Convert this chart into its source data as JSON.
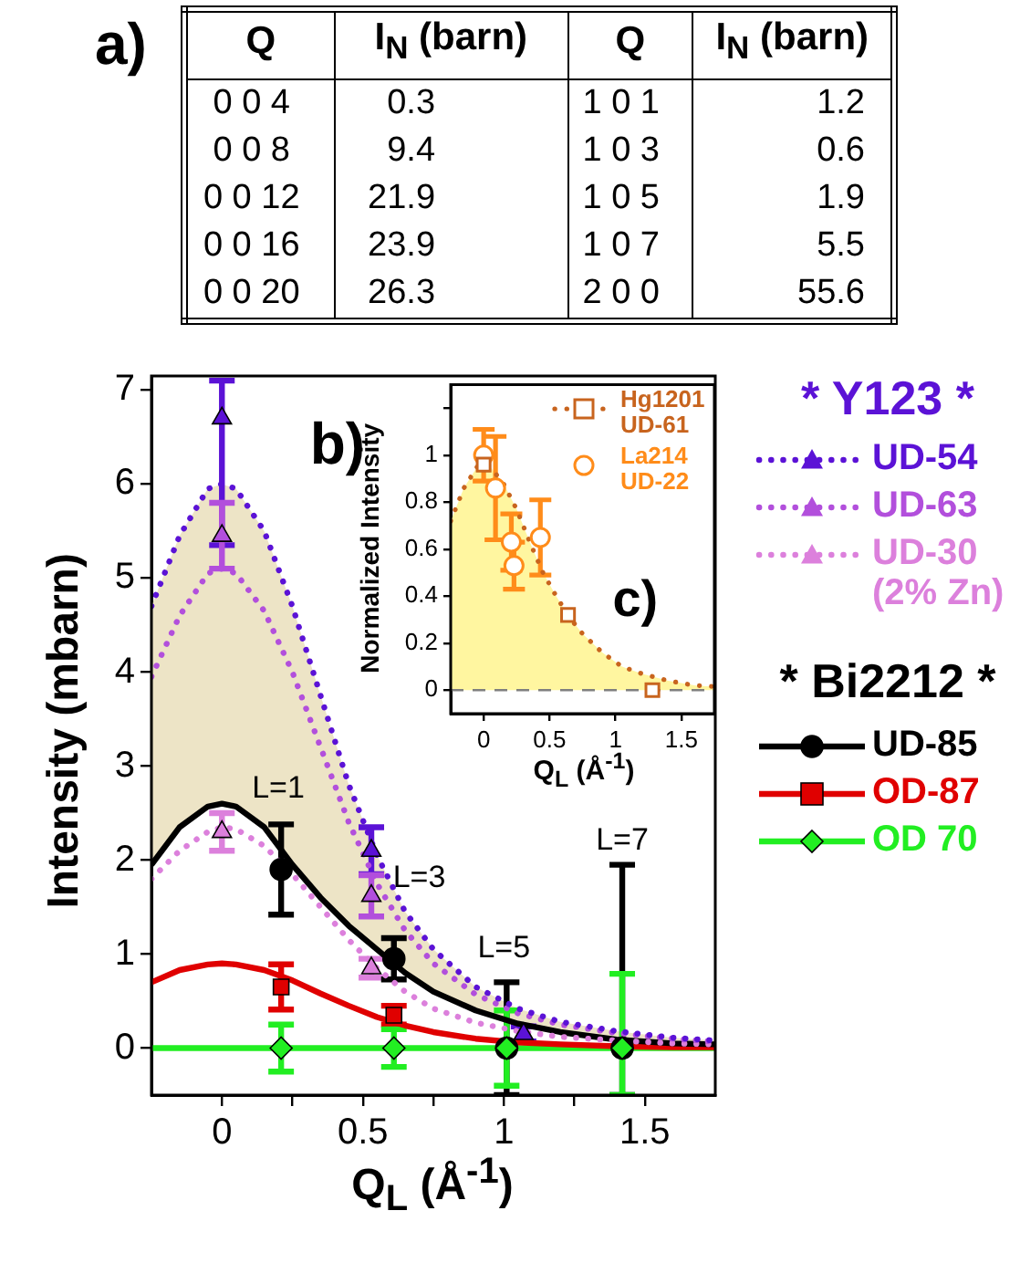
{
  "chart_data": [
    {
      "type": "other",
      "title": "a)",
      "xlabel": "Q",
      "ylabel": "I$_{N}$ (barn)",
      "categories": [
        "0 0 4",
        "0 0 8",
        "0 0 12",
        "0 0 16",
        "0 0 20",
        "1 0 1",
        "1 0 3",
        "1 0 5",
        "1 0 7",
        "2 0 0"
      ],
      "values": [
        0.3,
        9.4,
        21.9,
        23.9,
        26.3,
        1.2,
        0.6,
        1.9,
        5.5,
        55.6
      ],
      "data_labels": true
    },
    {
      "type": "line",
      "title": "b)",
      "xlabel": "Q$_{L}$ (Å$^{-1}$)",
      "ylabel": "Intensity (mbarn)",
      "xlim": [
        -0.25,
        1.75
      ],
      "xticks": [
        0,
        {
          "value": 0.25,
          "label": null
        },
        0.5,
        {
          "value": 0.75,
          "label": null
        },
        1,
        {
          "value": 1.25,
          "label": null
        },
        1.5
      ],
      "ylim": [
        -0.5,
        7.15
      ],
      "yticks": [
        0,
        1,
        2,
        3,
        4,
        5,
        6,
        7
      ],
      "legend": "right",
      "annotations": [
        "* Y123 *",
        "* Bi2212 *",
        "L=1",
        "L=3",
        "L=5",
        "L=7"
      ],
      "series": [
        {
          "type": "scatter",
          "name": "UD-54",
          "color": "#5b12d6",
          "marker": "triangle",
          "x": [
            0,
            0.53,
            1.07
          ],
          "values": [
            6.7,
            2.1,
            0.15
          ],
          "errors": [
            [
              5.35,
              7.1
            ],
            0.25,
            0.08
          ]
        },
        {
          "type": "line",
          "color": "#5b12d6",
          "line_style": "dotted",
          "x": [
            -0.25,
            -0.15,
            -0.05,
            0,
            0.05,
            0.15,
            0.25,
            0.35,
            0.45,
            0.55,
            0.65,
            0.75,
            0.9,
            1.05,
            1.2,
            1.4,
            1.6,
            1.75
          ],
          "values": [
            4.7,
            5.45,
            5.95,
            6.0,
            5.95,
            5.5,
            4.7,
            3.75,
            2.8,
            2.05,
            1.45,
            1.05,
            0.65,
            0.42,
            0.28,
            0.18,
            0.11,
            0.08
          ],
          "lower": [
            1.95,
            2.35,
            2.57,
            2.6,
            2.57,
            2.35,
            1.95,
            1.6,
            1.3,
            1.05,
            0.8,
            0.6,
            0.4,
            0.26,
            0.17,
            0.09,
            0.05,
            0.04
          ],
          "upper": [
            4.7,
            5.45,
            5.95,
            6.0,
            5.95,
            5.5,
            4.7,
            3.75,
            2.8,
            2.05,
            1.45,
            1.05,
            0.65,
            0.42,
            0.28,
            0.18,
            0.11,
            0.08
          ]
        },
        {
          "type": "scatter",
          "name": "UD-63",
          "color": "#b24fdc",
          "marker": "triangle",
          "x": [
            0,
            0.53
          ],
          "values": [
            5.45,
            1.62
          ],
          "errors": [
            0.35,
            0.22
          ]
        },
        {
          "type": "line",
          "color": "#b24fdc",
          "line_style": "dotted",
          "x": [
            -0.25,
            -0.15,
            -0.05,
            0,
            0.05,
            0.15,
            0.25,
            0.35,
            0.45,
            0.55,
            0.65,
            0.75,
            0.9,
            1.05,
            1.2,
            1.4,
            1.6,
            1.75
          ],
          "values": [
            3.95,
            4.6,
            5.05,
            5.1,
            5.05,
            4.65,
            4.0,
            3.2,
            2.4,
            1.75,
            1.25,
            0.9,
            0.57,
            0.37,
            0.25,
            0.16,
            0.1,
            0.07
          ]
        },
        {
          "type": "scatter",
          "name": "UD-30 (2% Zn)",
          "color": "#dc80dc",
          "marker": "triangle",
          "x": [
            0,
            0.53
          ],
          "values": [
            2.3,
            0.85
          ],
          "errors": [
            0.2,
            0.1
          ]
        },
        {
          "type": "line",
          "color": "#dc80dc",
          "line_style": "dotted",
          "x": [
            -0.25,
            -0.15,
            -0.05,
            0,
            0.05,
            0.15,
            0.25,
            0.35,
            0.45,
            0.55,
            0.65,
            0.75,
            0.9,
            1.05,
            1.2,
            1.4,
            1.6,
            1.75
          ],
          "values": [
            1.8,
            2.1,
            2.3,
            2.35,
            2.33,
            2.15,
            1.85,
            1.5,
            1.15,
            0.85,
            0.6,
            0.42,
            0.27,
            0.18,
            0.12,
            0.08,
            0.05,
            0.04
          ]
        },
        {
          "type": "scatter",
          "name": "UD-85",
          "color": "#000000",
          "marker": "circle",
          "x": [
            0.21,
            0.61,
            1.01,
            1.42
          ],
          "values": [
            1.9,
            0.95,
            0,
            0
          ],
          "errors": [
            0.48,
            0.22,
            [
              -0.5,
              0.7
            ],
            [
              -0.5,
              1.95
            ]
          ]
        },
        {
          "type": "line",
          "color": "#000000",
          "line_style": "solid",
          "x": [
            -0.25,
            -0.15,
            -0.05,
            0,
            0.05,
            0.15,
            0.25,
            0.35,
            0.45,
            0.55,
            0.65,
            0.75,
            0.9,
            1.05,
            1.2,
            1.4,
            1.6,
            1.75
          ],
          "values": [
            1.95,
            2.35,
            2.57,
            2.6,
            2.57,
            2.35,
            1.95,
            1.6,
            1.3,
            1.05,
            0.8,
            0.6,
            0.4,
            0.26,
            0.17,
            0.09,
            0.05,
            0.04
          ]
        },
        {
          "type": "scatter",
          "name": "OD-87",
          "color": "#e00000",
          "marker": "square",
          "x": [
            0.21,
            0.61
          ],
          "values": [
            0.65,
            0.35
          ],
          "errors": [
            0.24,
            0.1
          ]
        },
        {
          "type": "line",
          "color": "#e00000",
          "line_style": "solid",
          "x": [
            -0.25,
            -0.15,
            -0.05,
            0,
            0.05,
            0.15,
            0.25,
            0.35,
            0.45,
            0.55,
            0.65,
            0.75,
            0.9,
            1.05,
            1.2,
            1.4,
            1.6,
            1.75
          ],
          "values": [
            0.7,
            0.83,
            0.89,
            0.9,
            0.89,
            0.83,
            0.72,
            0.58,
            0.45,
            0.33,
            0.24,
            0.17,
            0.1,
            0.06,
            0.04,
            0.02,
            0.01,
            0.01
          ]
        },
        {
          "type": "scatter",
          "name": "OD 70",
          "color": "#22ee22",
          "marker": "diamond",
          "x": [
            0.21,
            0.61,
            1.01,
            1.42
          ],
          "values": [
            0,
            0,
            0,
            0
          ],
          "errors": [
            0.25,
            0.2,
            0.4,
            [
              -0.5,
              0.79
            ]
          ]
        },
        {
          "type": "line",
          "color": "#22ee22",
          "line_style": "solid",
          "x": [
            -0.25,
            1.75
          ],
          "values": [
            0,
            0
          ]
        }
      ]
    },
    {
      "type": "line",
      "title": "c)",
      "xlabel": "Q$_{L}$ (Å$^{-1}$)",
      "ylabel": "Normalized Intensity",
      "xlim": [
        -0.25,
        1.75
      ],
      "xticks": [
        0,
        0.5,
        1,
        1.5
      ],
      "ylim": [
        -0.1,
        1.3
      ],
      "yticks": [
        0,
        0.2,
        0.4,
        0.6,
        0.8,
        1,
        {
          "value": 1.2,
          "label": null
        }
      ],
      "legend": "top right",
      "ref_lines": [
        {
          "axis": "y",
          "value": 0,
          "color": "#808080",
          "line_style": "dashed"
        }
      ],
      "series": [
        {
          "type": "scatter",
          "name": "Hg1201 UD-61",
          "color": "#c8641e",
          "marker": "square",
          "x": [
            0,
            0.64,
            1.28
          ],
          "values": [
            0.96,
            0.32,
            0
          ]
        },
        {
          "type": "line",
          "color": "#c8641e",
          "line_style": "dotted",
          "x": [
            -0.25,
            -0.15,
            -0.05,
            0,
            0.05,
            0.15,
            0.25,
            0.35,
            0.45,
            0.55,
            0.65,
            0.75,
            0.9,
            1.05,
            1.2,
            1.4,
            1.6,
            1.75
          ],
          "values": [
            0.72,
            0.86,
            0.95,
            0.96,
            0.95,
            0.88,
            0.77,
            0.63,
            0.5,
            0.4,
            0.31,
            0.24,
            0.16,
            0.1,
            0.07,
            0.04,
            0.02,
            0.015
          ],
          "lower": [
            0,
            0,
            0,
            0,
            0,
            0,
            0,
            0,
            0,
            0,
            0,
            0,
            0,
            0,
            0,
            0,
            0,
            0
          ],
          "upper": [
            0.72,
            0.86,
            0.95,
            0.96,
            0.95,
            0.88,
            0.77,
            0.63,
            0.5,
            0.4,
            0.31,
            0.24,
            0.16,
            0.1,
            0.07,
            0.04,
            0.02,
            0.015
          ]
        },
        {
          "type": "scatter",
          "name": "La214 UD-22",
          "color": "#ff8c1a",
          "marker": "circle",
          "x": [
            0,
            0.09,
            0.21,
            0.23,
            0.43
          ],
          "values": [
            1.0,
            0.86,
            0.63,
            0.53,
            0.65
          ],
          "errors": [
            0.11,
            0.22,
            0.12,
            0.1,
            0.16
          ]
        }
      ]
    }
  ]
}
